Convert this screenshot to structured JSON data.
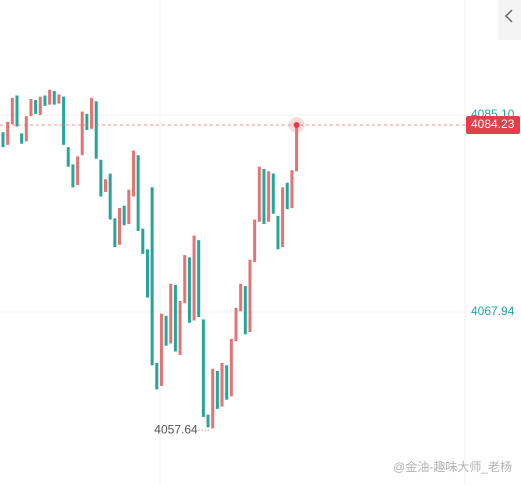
{
  "chart_data": {
    "type": "candlestick",
    "up_color": "#e57373",
    "down_color": "#26a69a",
    "open": [
      4083.6,
      4082.5,
      4084.3,
      4086.8,
      4083.5,
      4082.8,
      4085.0,
      4086.4,
      4085.1,
      4086.8,
      4086.0,
      4087.2,
      4086.1,
      4086.7,
      4082.3,
      4080.8,
      4079.0,
      4081.6,
      4085.2,
      4083.9,
      4086.3,
      4081.2,
      4078.4,
      4080.0,
      4076.1,
      4073.8,
      4077.2,
      4075.6,
      4078.0,
      4081.6,
      4075.2,
      4073.4,
      4078.8,
      4063.5,
      4061.5,
      4067.6,
      4065.2,
      4070.3,
      4064.2,
      4068.7,
      4072.7,
      4067.2,
      4074.2,
      4067.3,
      4059.0,
      4057.8,
      4062.8,
      4059.7,
      4063.3,
      4060.6,
      4065.4,
      4068.0,
      4070.2,
      4066.2,
      4072.3,
      4075.8,
      4080.4,
      4075.8,
      4080.0,
      4076.3,
      4073.6,
      4079.2,
      4077.0,
      4080.2
    ],
    "close": [
      4082.3,
      4084.5,
      4086.6,
      4084.1,
      4082.6,
      4085.0,
      4086.5,
      4085.2,
      4086.7,
      4085.9,
      4087.3,
      4086.0,
      4086.9,
      4082.5,
      4080.6,
      4078.8,
      4081.5,
      4085.4,
      4083.8,
      4086.6,
      4081.3,
      4078.0,
      4079.5,
      4076.0,
      4073.6,
      4077.0,
      4075.5,
      4078.6,
      4082.0,
      4075.0,
      4073.0,
      4069.2,
      4063.3,
      4061.2,
      4067.8,
      4065.0,
      4070.4,
      4064.5,
      4068.9,
      4072.9,
      4067.0,
      4074.6,
      4067.5,
      4058.8,
      4057.9,
      4063.0,
      4059.5,
      4063.5,
      4060.3,
      4065.6,
      4068.3,
      4070.4,
      4066.0,
      4072.5,
      4076.0,
      4080.6,
      4075.6,
      4080.2,
      4076.5,
      4073.4,
      4078.8,
      4076.9,
      4080.3,
      4084.23
    ],
    "ylim": [
      4052.87,
      4095.12
    ],
    "yticks": [
      {
        "value": 4085.1,
        "label": "4085.10"
      },
      4067.94
    ],
    "last_price": 4084.23,
    "low": 4057.64,
    "watermark": "@金油-趣味大师_老杨"
  }
}
